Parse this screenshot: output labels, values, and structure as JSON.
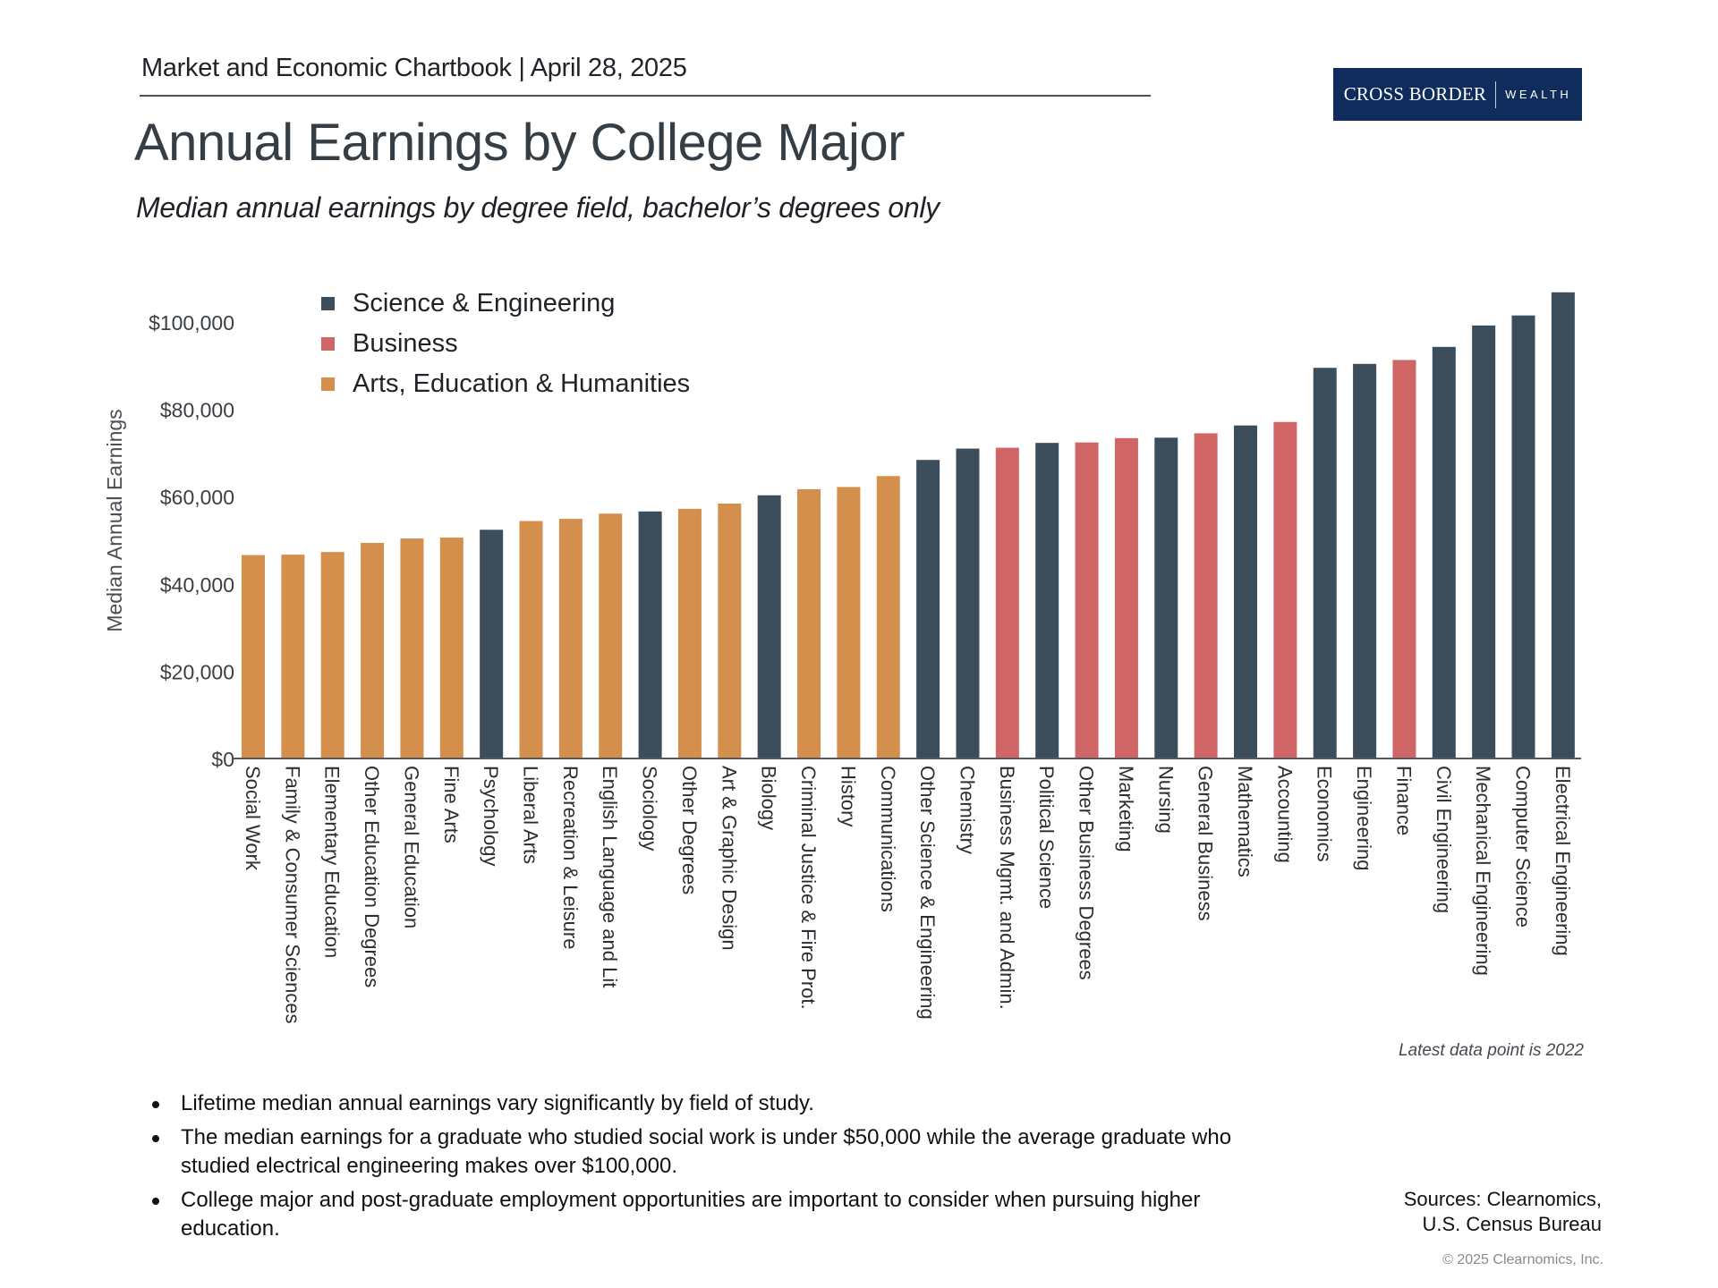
{
  "header": {
    "publication": "Market and Economic Chartbook | April 28, 2025",
    "logo_brand": "CROSS BORDER",
    "logo_sub": "WEALTH"
  },
  "title": "Annual Earnings by College Major",
  "subtitle": "Median annual earnings by degree field, bachelor’s degrees only",
  "note": "Latest data point is 2022",
  "bullets": [
    "Lifetime median annual earnings vary significantly by field of study.",
    "The median earnings for a graduate who studied social work is under $50,000 while the average graduate who studied electrical engineering makes over $100,000.",
    "College major and post-graduate employment opportunities are important to consider when pursuing higher education."
  ],
  "sources": [
    "Sources: Clearnomics,",
    "U.S. Census Bureau"
  ],
  "copyright": "© 2025 Clearnomics, Inc.",
  "colors": {
    "science": "#3C4D5C",
    "business": "#D06565",
    "arts": "#D48F4C",
    "axis": "#555a60",
    "tick_text": "#3a3f44"
  },
  "chart_data": {
    "type": "bar",
    "title": "Annual Earnings by College Major",
    "xlabel": "",
    "ylabel": "Median Annual Earnings",
    "ylim": [
      0,
      110000
    ],
    "yticks": [
      0,
      20000,
      40000,
      60000,
      80000,
      100000
    ],
    "ytick_labels": [
      "$0",
      "$20,000",
      "$40,000",
      "$60,000",
      "$80,000",
      "$100,000"
    ],
    "grid": false,
    "legend_position": "top-left",
    "legend": [
      {
        "key": "science",
        "label": "Science & Engineering"
      },
      {
        "key": "business",
        "label": "Business"
      },
      {
        "key": "arts",
        "label": "Arts, Education & Humanities"
      }
    ],
    "categories": [
      "Social Work",
      "Family & Consumer Sciences",
      "Elementary Education",
      "Other Education Degrees",
      "General Education",
      "Fine Arts",
      "Psychology",
      "Liberal Arts",
      "Recreation & Leisure",
      "English Language and Lit",
      "Sociology",
      "Other Degrees",
      "Art & Graphic Design",
      "Biology",
      "Criminal Justice & Fire Prot.",
      "History",
      "Communications",
      "Other Science & Engineering",
      "Chemistry",
      "Business Mgmt. and Admin.",
      "Political Science",
      "Other Business Degrees",
      "Marketing",
      "Nursing",
      "General Business",
      "Mathematics",
      "Accounting",
      "Economics",
      "Engineering",
      "Finance",
      "Civil Engineering",
      "Mechanical Engineering",
      "Computer Science",
      "Electrical Engineering"
    ],
    "groups": [
      "arts",
      "arts",
      "arts",
      "arts",
      "arts",
      "arts",
      "science",
      "arts",
      "arts",
      "arts",
      "science",
      "arts",
      "arts",
      "science",
      "arts",
      "arts",
      "arts",
      "science",
      "science",
      "business",
      "science",
      "business",
      "business",
      "science",
      "business",
      "science",
      "business",
      "science",
      "science",
      "business",
      "science",
      "science",
      "science",
      "science"
    ],
    "values": [
      46600,
      46700,
      47300,
      49400,
      50400,
      50600,
      52400,
      54400,
      54900,
      56100,
      56600,
      57200,
      58400,
      60300,
      61700,
      62200,
      64700,
      68400,
      71000,
      71200,
      72300,
      72400,
      73400,
      73500,
      74500,
      76300,
      77100,
      89500,
      90400,
      91300,
      94300,
      99200,
      101500,
      106800
    ]
  }
}
